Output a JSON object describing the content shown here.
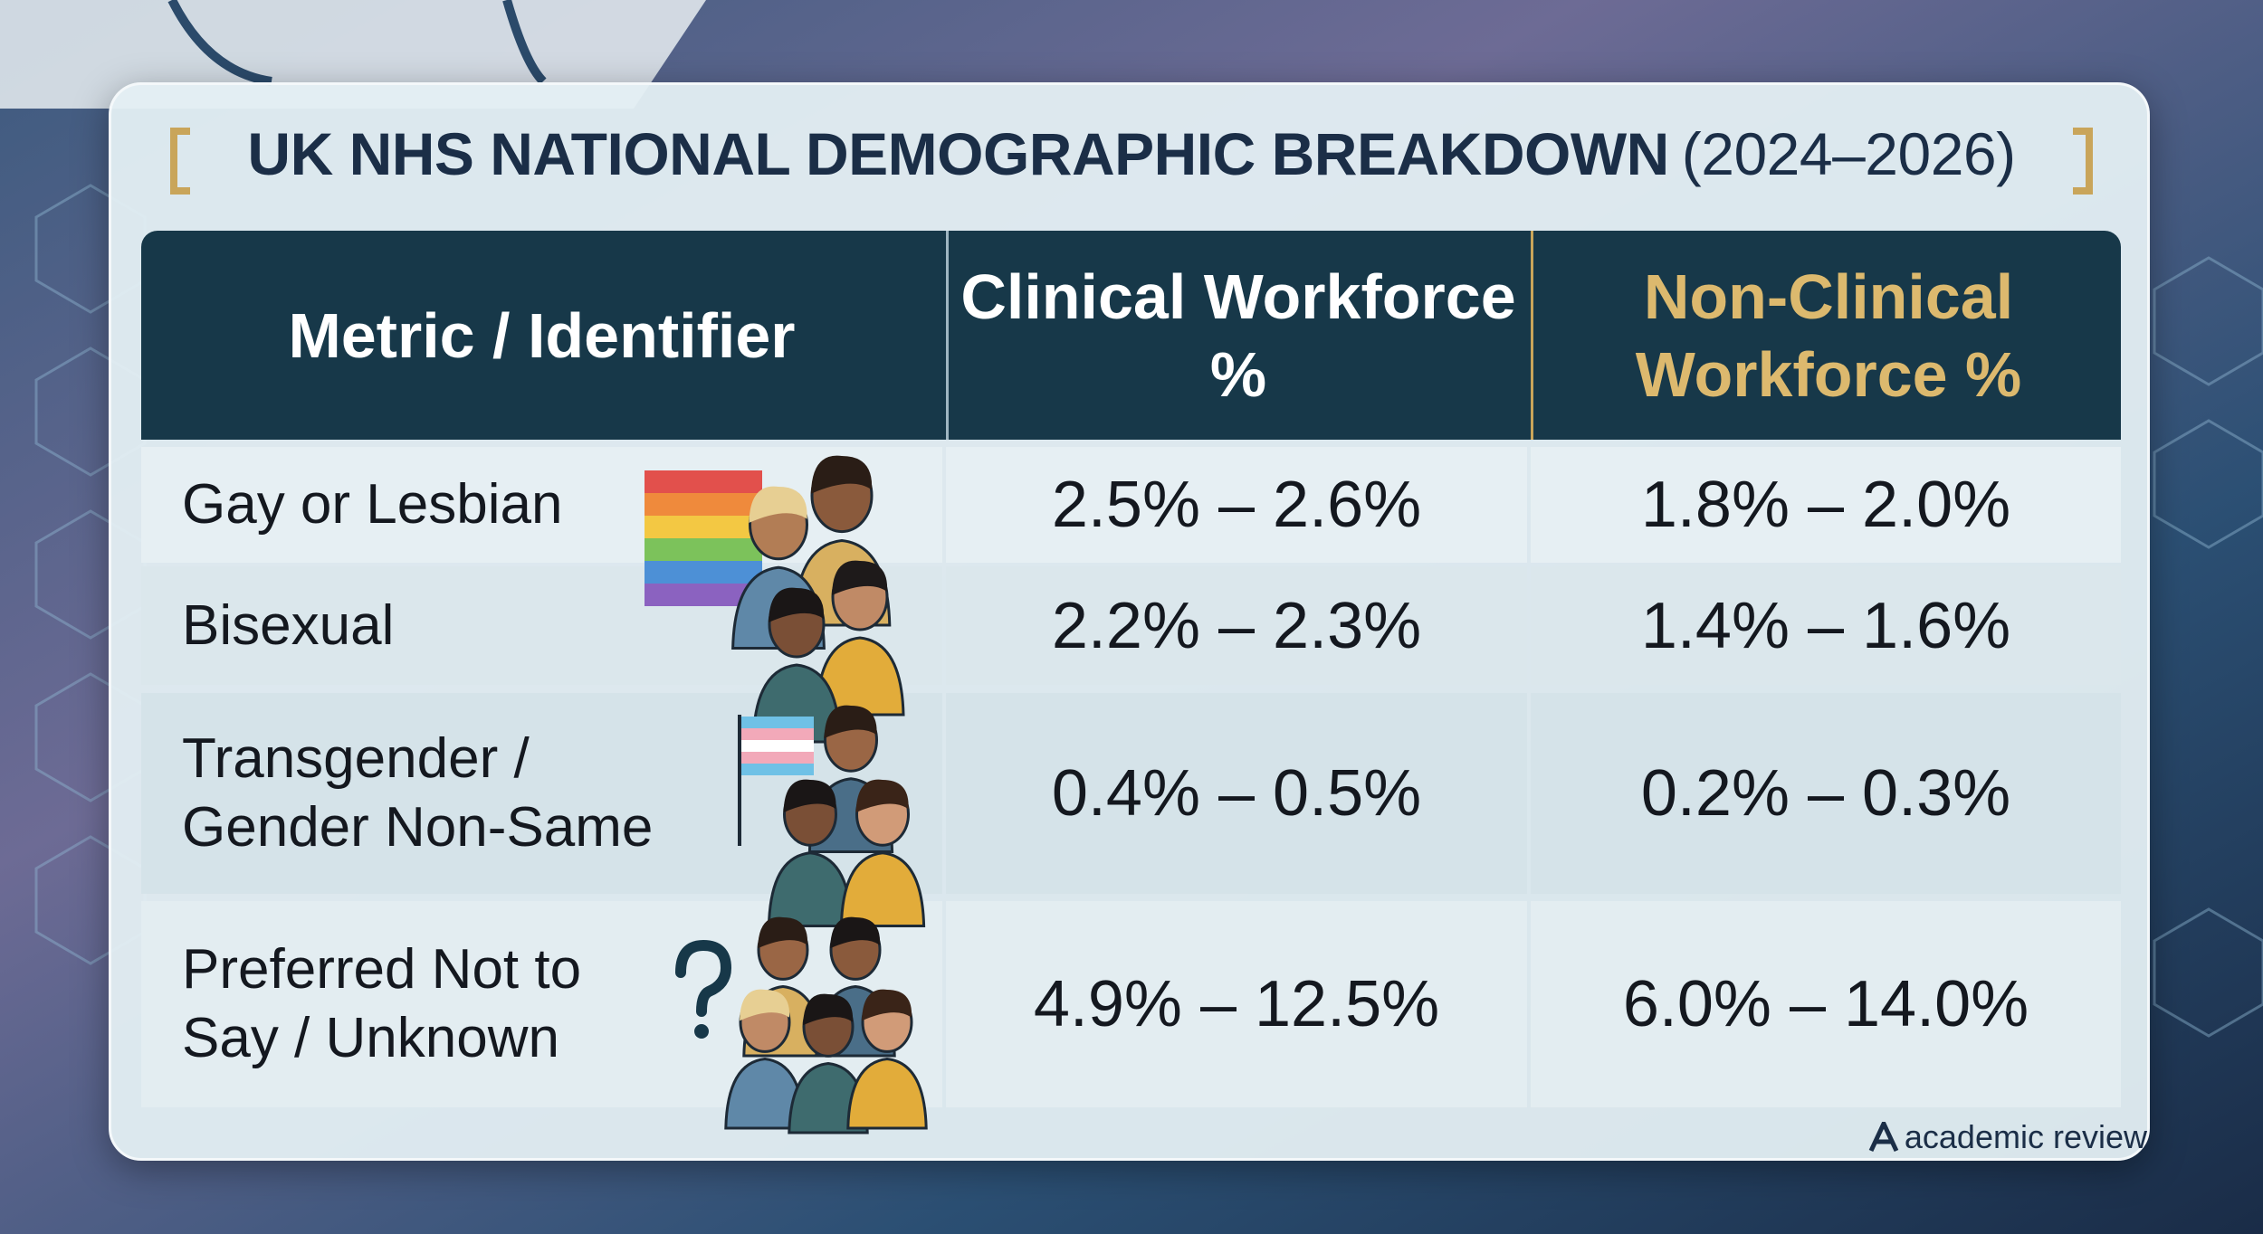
{
  "title": {
    "main": "UK NHS NATIONAL DEMOGRAPHIC BREAKDOWN",
    "years": "(2024–2026)"
  },
  "table": {
    "header": [
      "Metric / Identifier",
      "Clinical Workforce %",
      "Non-Clinical Workforce %"
    ],
    "rows": [
      [
        "Gay or Lesbian",
        "2.5% – 2.6%",
        "1.8% – 2.0%"
      ],
      [
        "Bisexual",
        "2.2% – 2.3%",
        "1.4% – 1.6%"
      ],
      [
        "Transgender / Gender Non-Same",
        "0.4% – 0.5%",
        "0.2% – 0.3%"
      ],
      [
        "Preferred Not to Say / Unknown",
        "4.9% – 12.5%",
        "6.0% – 14.0%"
      ]
    ]
  },
  "footer": {
    "brand": "academic review"
  }
}
